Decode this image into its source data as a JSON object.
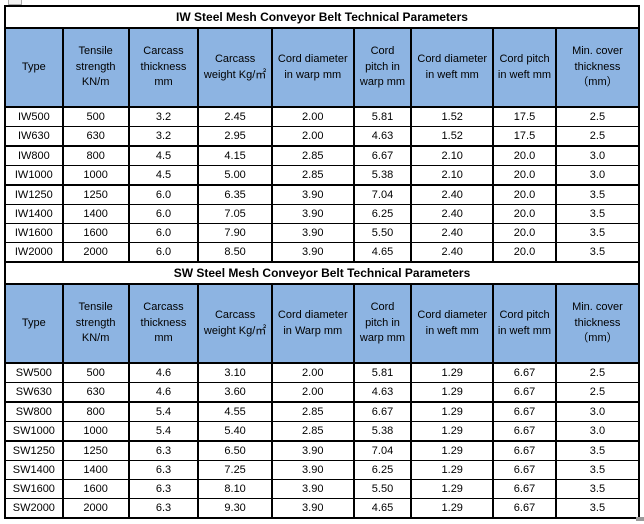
{
  "style": {
    "header_bg": "#8DB4E2",
    "border_color": "#000000",
    "page_bg": "#FFFFFF",
    "text_color": "#000000"
  },
  "layout": {
    "col_widths_pct": [
      9.1,
      10.4,
      11.0,
      11.6,
      12.9,
      9.1,
      12.9,
      9.9,
      13.1
    ]
  },
  "tables": [
    {
      "name": "iw-table",
      "title": "IW Steel Mesh Conveyor Belt Technical Parameters",
      "columns": [
        "Type",
        "Tensile strength KN/m",
        "Carcass thickness mm",
        "Carcass weight Kg/㎡",
        "Cord diameter in warp mm",
        "Cord pitch in warp mm",
        "Cord diameter in weft mm",
        "Cord pitch in weft mm",
        "Min. cover thickness （mm）"
      ],
      "thick_after": [
        1,
        3
      ],
      "rows": [
        [
          "IW500",
          "500",
          "3.2",
          "2.45",
          "2.00",
          "5.81",
          "1.52",
          "17.5",
          "2.5"
        ],
        [
          "IW630",
          "630",
          "3.2",
          "2.95",
          "2.00",
          "4.63",
          "1.52",
          "17.5",
          "2.5"
        ],
        [
          "IW800",
          "800",
          "4.5",
          "4.15",
          "2.85",
          "6.67",
          "2.10",
          "20.0",
          "3.0"
        ],
        [
          "IW1000",
          "1000",
          "4.5",
          "5.00",
          "2.85",
          "5.38",
          "2.10",
          "20.0",
          "3.0"
        ],
        [
          "IW1250",
          "1250",
          "6.0",
          "6.35",
          "3.90",
          "7.04",
          "2.40",
          "20.0",
          "3.5"
        ],
        [
          "IW1400",
          "1400",
          "6.0",
          "7.05",
          "3.90",
          "6.25",
          "2.40",
          "20.0",
          "3.5"
        ],
        [
          "IW1600",
          "1600",
          "6.0",
          "7.90",
          "3.90",
          "5.50",
          "2.40",
          "20.0",
          "3.5"
        ],
        [
          "IW2000",
          "2000",
          "6.0",
          "8.50",
          "3.90",
          "4.65",
          "2.40",
          "20.0",
          "3.5"
        ]
      ]
    },
    {
      "name": "sw-table",
      "title": "SW Steel Mesh Conveyor Belt Technical Parameters",
      "columns": [
        "Type",
        "Tensile strength KN/m",
        "Carcass thickness mm",
        "Carcass weight Kg/㎡",
        "Cord diameter in Warp mm",
        "Cord pitch in warp mm",
        "Cord diameter in weft mm",
        "Cord pitch in weft mm",
        "Min. cover thickness （mm）"
      ],
      "thick_after": [
        1,
        3
      ],
      "rows": [
        [
          "SW500",
          "500",
          "4.6",
          "3.10",
          "2.00",
          "5.81",
          "1.29",
          "6.67",
          "2.5"
        ],
        [
          "SW630",
          "630",
          "4.6",
          "3.60",
          "2.00",
          "4.63",
          "1.29",
          "6.67",
          "2.5"
        ],
        [
          "SW800",
          "800",
          "5.4",
          "4.55",
          "2.85",
          "6.67",
          "1.29",
          "6.67",
          "3.0"
        ],
        [
          "SW1000",
          "1000",
          "5.4",
          "5.40",
          "2.85",
          "5.38",
          "1.29",
          "6.67",
          "3.0"
        ],
        [
          "SW1250",
          "1250",
          "6.3",
          "6.50",
          "3.90",
          "7.04",
          "1.29",
          "6.67",
          "3.5"
        ],
        [
          "SW1400",
          "1400",
          "6.3",
          "7.25",
          "3.90",
          "6.25",
          "1.29",
          "6.67",
          "3.5"
        ],
        [
          "SW1600",
          "1600",
          "6.3",
          "8.10",
          "3.90",
          "5.50",
          "1.29",
          "6.67",
          "3.5"
        ],
        [
          "SW2000",
          "2000",
          "6.3",
          "9.30",
          "3.90",
          "4.65",
          "1.29",
          "6.67",
          "3.5"
        ]
      ]
    }
  ]
}
